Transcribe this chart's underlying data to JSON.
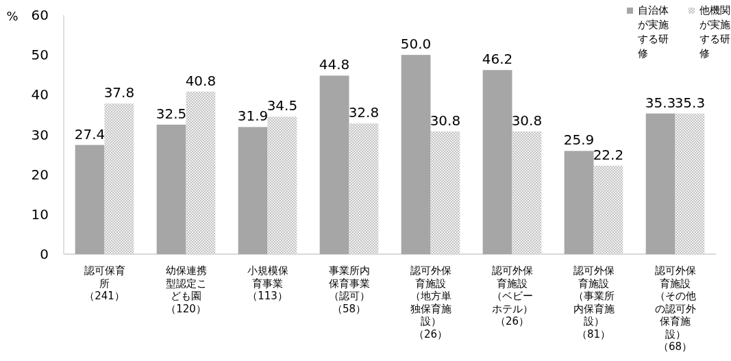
{
  "chart_data": {
    "type": "bar",
    "ylabel": "%",
    "categories": [
      "認可保育所（241）",
      "幼保連携型認定こども園（120）",
      "小規模保育事業（113）",
      "事業所内保育事業（認可）（58）",
      "認可外保育施設（地方単独保育施設）（26）",
      "認可外保育施設（ベビーホテル）（26）",
      "認可外保育施設（事業所内保育施設）（81）",
      "認可外保育施設（その他の認可外保育施設）（68）"
    ],
    "series": [
      {
        "name": "自治体が実施する研修",
        "color": "#a6a6a6",
        "values": [
          27.4,
          32.5,
          31.9,
          44.8,
          50.0,
          46.2,
          25.9,
          35.3
        ],
        "value_labels": [
          "27.4",
          "32.5",
          "31.9",
          "44.8",
          "50.0",
          "46.2",
          "25.9",
          "35.3"
        ]
      },
      {
        "name": "他機関が実施する研修",
        "color": "#c4c4c4",
        "values": [
          37.8,
          40.8,
          34.5,
          32.8,
          30.8,
          30.8,
          22.2,
          35.3
        ],
        "value_labels": [
          "37.8",
          "40.8",
          "34.5",
          "32.8",
          "30.8",
          "30.8",
          "22.2",
          "35.3"
        ]
      }
    ],
    "ylim": [
      0,
      60
    ],
    "yticks": [
      0,
      10,
      20,
      30,
      40,
      50,
      60
    ],
    "legend": "top right",
    "grid": false
  }
}
